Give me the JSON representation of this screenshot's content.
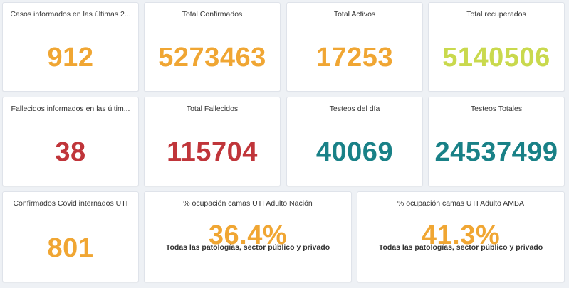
{
  "row1": [
    {
      "title": "Casos informados en las últimas 2...",
      "value": "912",
      "color": "#f0a633"
    },
    {
      "title": "Total Confirmados",
      "value": "5273463",
      "color": "#f0a633"
    },
    {
      "title": "Total Activos",
      "value": "17253",
      "color": "#f0a633"
    },
    {
      "title": "Total recuperados",
      "value": "5140506",
      "color": "#c9d94d"
    }
  ],
  "row2": [
    {
      "title": "Fallecidos informados en las últim...",
      "value": "38",
      "color": "#c0353a"
    },
    {
      "title": "Total Fallecidos",
      "value": "115704",
      "color": "#c0353a"
    },
    {
      "title": "Testeos del día",
      "value": "40069",
      "color": "#198187"
    },
    {
      "title": "Testeos Totales",
      "value": "24537499",
      "color": "#198187"
    }
  ],
  "row3": [
    {
      "title": "Confirmados Covid internados UTI",
      "value": "801",
      "color": "#f0a633"
    },
    {
      "title": "% ocupación camas UTI Adulto Nación",
      "value": "36.4%",
      "subtitle": "Todas las patologías, sector público y privado",
      "color": "#f0a633"
    },
    {
      "title": "% ocupación camas UTI Adulto AMBA",
      "value": "41.3%",
      "subtitle": "Todas las patologías, sector público y privado",
      "color": "#f0a633"
    }
  ]
}
